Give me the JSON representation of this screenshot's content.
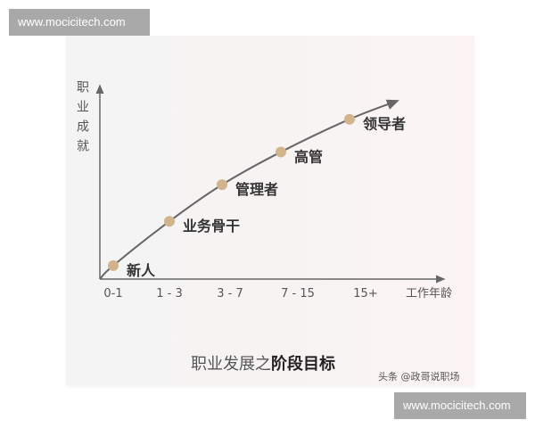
{
  "watermark": {
    "top": "www.mocicitech.com",
    "bottom": "www.mocicitech.com"
  },
  "caption": {
    "normal": "职业发展之",
    "bold": "阶段目标"
  },
  "credit": "头条 @政哥说职场",
  "chart_data": {
    "type": "line",
    "title": "职业发展之阶段目标",
    "xlabel": "工作年龄",
    "ylabel": "职业成就",
    "categories": [
      "0-1",
      "1 - 3",
      "3 - 7",
      "7 - 15",
      "15+"
    ],
    "series": [
      {
        "values": [
          7,
          30,
          49,
          66,
          83
        ],
        "labels": [
          "新人",
          "业务骨干",
          "管理者",
          "高管",
          "领导者"
        ]
      }
    ],
    "ylim": [
      0,
      100
    ],
    "grid": false,
    "legend": "none",
    "colors": {
      "line": "#666666",
      "point": "#d2b48c",
      "axis": "#666666",
      "text": "#333333"
    }
  }
}
